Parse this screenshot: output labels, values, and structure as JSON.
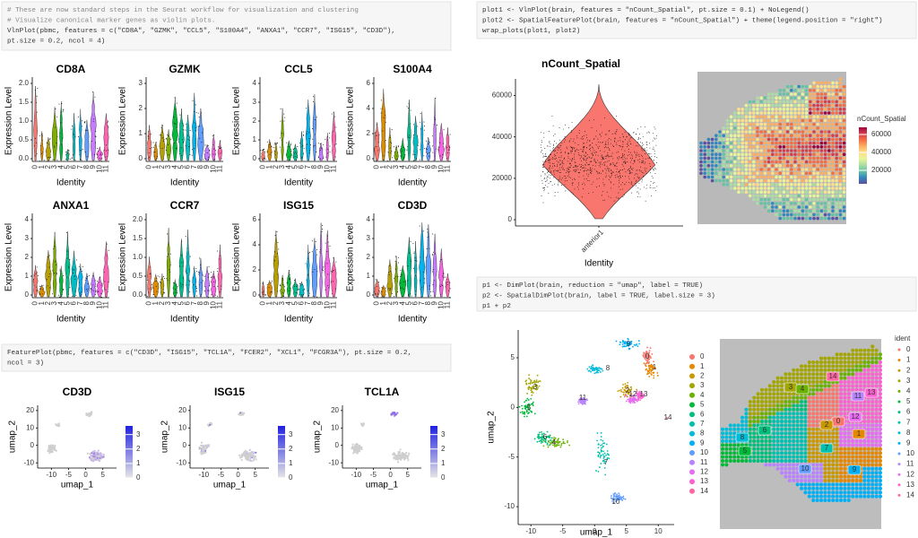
{
  "code_blocks": [
    {
      "lines": [
        "# These are now standard steps in the Seurat workflow for visualization and clustering",
        "# Visualize canonical marker genes as violin plots.",
        "VlnPlot(pbmc, features = c(\"CD8A\", \"GZMK\", \"CCL5\", \"S100A4\", \"ANXA1\", \"CCR7\", \"ISG15\", \"CD3D\"),",
        "    pt.size = 0.2, ncol = 4)"
      ]
    },
    {
      "lines": [
        "FeaturePlot(pbmc, features = c(\"CD3D\", \"ISG15\", \"TCL1A\", \"FCER2\", \"XCL1\", \"FCGR3A\"), pt.size = 0.2,",
        "    ncol = 3)"
      ]
    },
    {
      "lines": [
        "plot1 <- VlnPlot(brain, features = \"nCount_Spatial\", pt.size = 0.1) + NoLegend()",
        "plot2 <- SpatialFeaturePlot(brain, features = \"nCount_Spatial\") + theme(legend.position = \"right\")",
        "wrap_plots(plot1, plot2)"
      ]
    },
    {
      "lines": [
        "p1 <- DimPlot(brain, reduction = \"umap\", label = TRUE)",
        "p2 <- SpatialDimPlot(brain, label = TRUE, label.size = 3)",
        "p1 + p2"
      ]
    }
  ],
  "violin_plots": {
    "x_label": "Identity",
    "y_label": "Expression Level",
    "categories": [
      "0",
      "1",
      "2",
      "3",
      "4",
      "5",
      "6",
      "7",
      "8",
      "9",
      "10",
      "11"
    ],
    "panels": [
      {
        "title": "CD8A",
        "yticks": [
          "0.0",
          "0.5",
          "1.0",
          "1.5",
          "2.0"
        ]
      },
      {
        "title": "GZMK",
        "yticks": [
          "0",
          "1",
          "2",
          "3"
        ]
      },
      {
        "title": "CCL5",
        "yticks": [
          "0",
          "1",
          "2",
          "3",
          "4"
        ]
      },
      {
        "title": "S100A4",
        "yticks": [
          "0",
          "2",
          "4",
          "6"
        ]
      },
      {
        "title": "ANXA1",
        "yticks": [
          "0",
          "1",
          "2",
          "3",
          "4"
        ]
      },
      {
        "title": "CCR7",
        "yticks": [
          "0.0",
          "0.5",
          "1.0",
          "1.5",
          "2.0"
        ]
      },
      {
        "title": "ISG15",
        "yticks": [
          "0",
          "2",
          "4",
          "6"
        ]
      },
      {
        "title": "CD3D",
        "yticks": [
          "0",
          "1",
          "2",
          "3",
          "4"
        ]
      }
    ]
  },
  "feature_plots": {
    "x_label": "umap_1",
    "y_label": "umap_2",
    "xticks": [
      -10,
      -5,
      0,
      5
    ],
    "yticks": [
      -10,
      0,
      10,
      20
    ],
    "xlim": [
      -14,
      9
    ],
    "ylim": [
      -13,
      23
    ],
    "colorbar_ticks": [
      0,
      1,
      2,
      3
    ],
    "colorbar_lim": [
      0,
      3.6
    ],
    "panels": [
      {
        "title": "CD3D"
      },
      {
        "title": "ISG15"
      },
      {
        "title": "TCL1A"
      }
    ]
  },
  "spatial_violin": {
    "title": "nCount_Spatial",
    "category": "anterior1",
    "x_label": "Identity",
    "yticks": [
      0,
      20000,
      40000,
      60000
    ],
    "ylim": [
      -3000,
      68000
    ]
  },
  "spatial_feature": {
    "legend_title": "nCount_Spatial",
    "legend_ticks": [
      20000,
      40000,
      60000
    ],
    "legend_lim": [
      5000,
      68000
    ]
  },
  "umap": {
    "x_label": "umap_1",
    "y_label": "umap_2",
    "xticks": [
      -10,
      -5,
      0,
      5,
      10
    ],
    "yticks": [
      -10,
      -5,
      0,
      5
    ],
    "xlim": [
      -12,
      12.5
    ],
    "ylim": [
      -11.8,
      7.8
    ],
    "clusters": [
      "0",
      "1",
      "2",
      "3",
      "4",
      "5",
      "6",
      "7",
      "8",
      "9",
      "10",
      "11",
      "12",
      "13",
      "14"
    ]
  },
  "spatial_dim": {
    "legend_title": "ident",
    "clusters": [
      "0",
      "1",
      "2",
      "3",
      "4",
      "5",
      "6",
      "7",
      "8",
      "9",
      "10",
      "11",
      "12",
      "13",
      "14"
    ]
  }
}
